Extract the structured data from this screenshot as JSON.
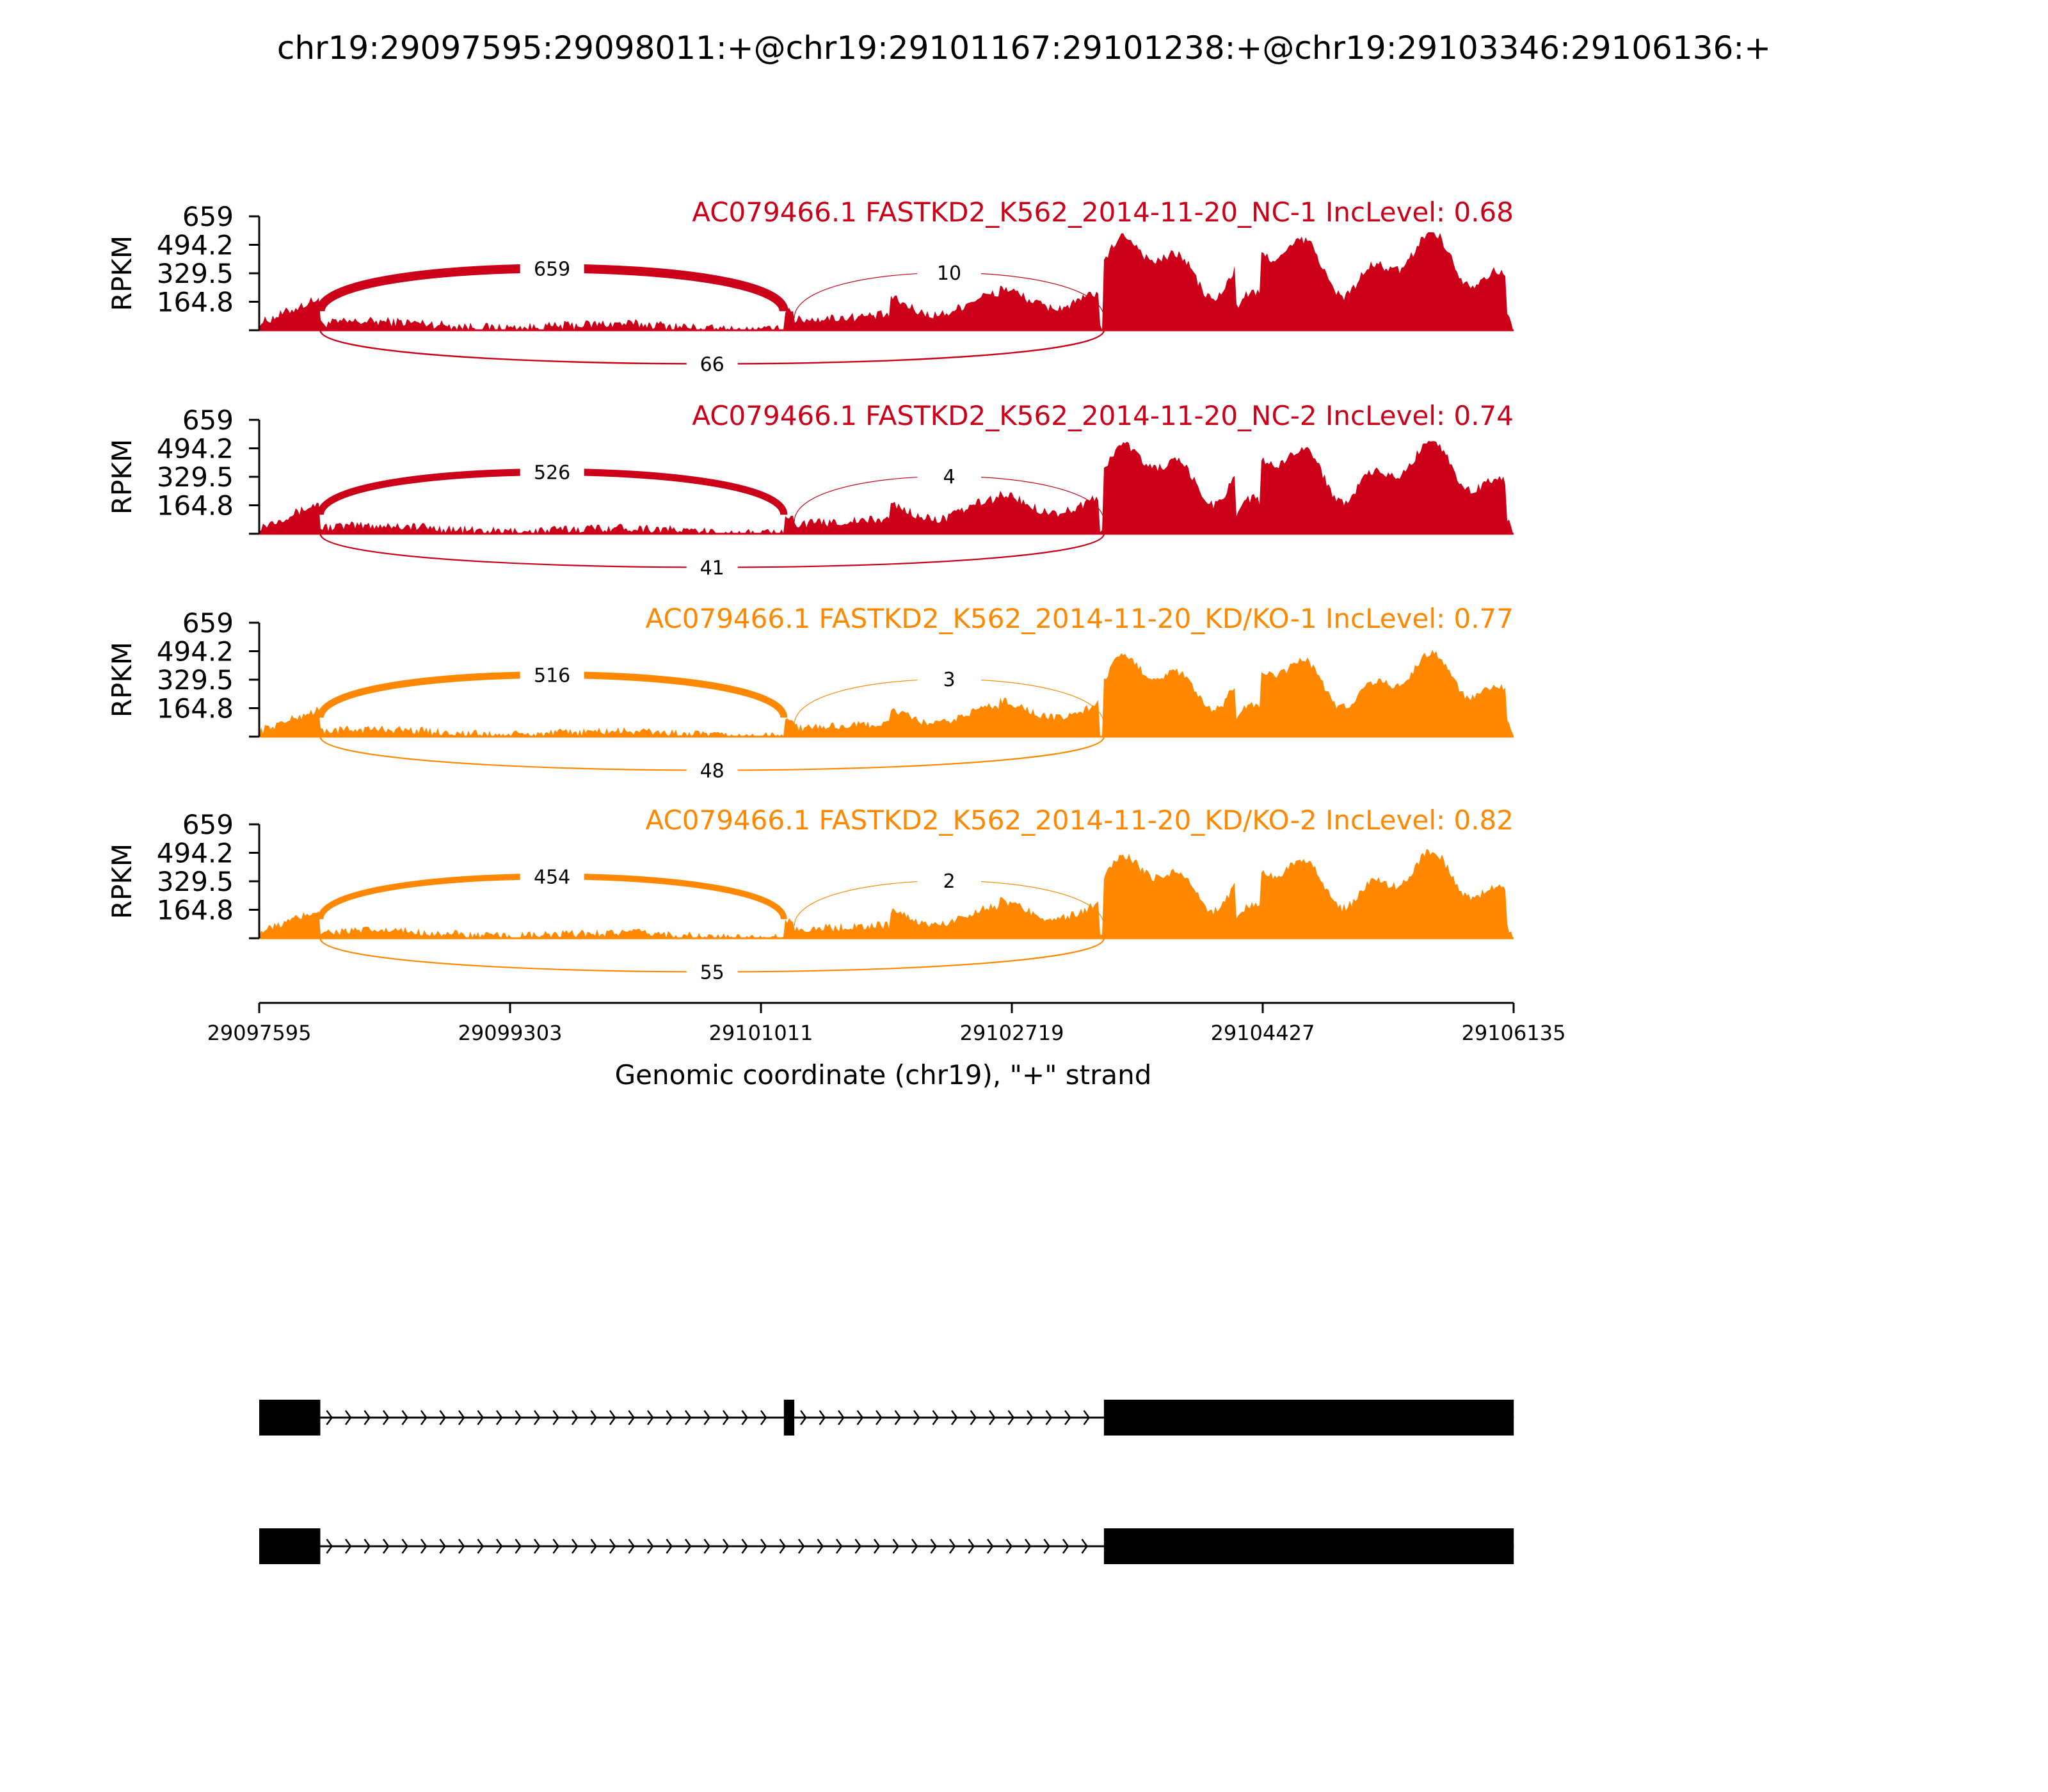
{
  "title": "chr19:29097595:29098011:+@chr19:29101167:29101238:+@chr19:29103346:29106136:+",
  "colors": {
    "nc": "#cc0018",
    "kd": "#ff8800",
    "axis": "#000000",
    "gene": "#000000"
  },
  "chart_data": {
    "type": "area",
    "ylabel": "RPKM",
    "yticks": [
      "164.8",
      "329.5",
      "494.2",
      "659"
    ],
    "ylim": [
      0,
      659
    ],
    "xlim": [
      29097595,
      29106135
    ],
    "xticks": [
      "29097595",
      "29099303",
      "29101011",
      "29102719",
      "29104427",
      "29106135"
    ],
    "xlabel": "Genomic coordinate (chr19), \"+\" strand",
    "exons": [
      [
        29097595,
        29098011
      ],
      [
        29101167,
        29101238
      ],
      [
        29103346,
        29106136
      ]
    ],
    "tracks": [
      {
        "label": "AC079466.1 FASTKD2_K562_2014-11-20_NC-1 IncLevel: 0.68",
        "group": "nc",
        "junction_counts": {
          "exon1_exon2": "659",
          "exon2_exon3": "10",
          "exon1_exon3": "66"
        }
      },
      {
        "label": "AC079466.1 FASTKD2_K562_2014-11-20_NC-2 IncLevel: 0.74",
        "group": "nc",
        "junction_counts": {
          "exon1_exon2": "526",
          "exon2_exon3": "4",
          "exon1_exon3": "41"
        }
      },
      {
        "label": "AC079466.1 FASTKD2_K562_2014-11-20_KD/KO-1 IncLevel: 0.77",
        "group": "kd",
        "junction_counts": {
          "exon1_exon2": "516",
          "exon2_exon3": "3",
          "exon1_exon3": "48"
        }
      },
      {
        "label": "AC079466.1 FASTKD2_K562_2014-11-20_KD/KO-2 IncLevel: 0.82",
        "group": "kd",
        "junction_counts": {
          "exon1_exon2": "454",
          "exon2_exon3": "2",
          "exon1_exon3": "55"
        }
      }
    ],
    "transcripts": [
      {
        "exons": [
          [
            29097595,
            29098011
          ],
          [
            29101167,
            29101238
          ],
          [
            29103346,
            29106136
          ]
        ]
      },
      {
        "exons": [
          [
            29097595,
            29098011
          ],
          [
            29103346,
            29106136
          ]
        ]
      }
    ]
  }
}
